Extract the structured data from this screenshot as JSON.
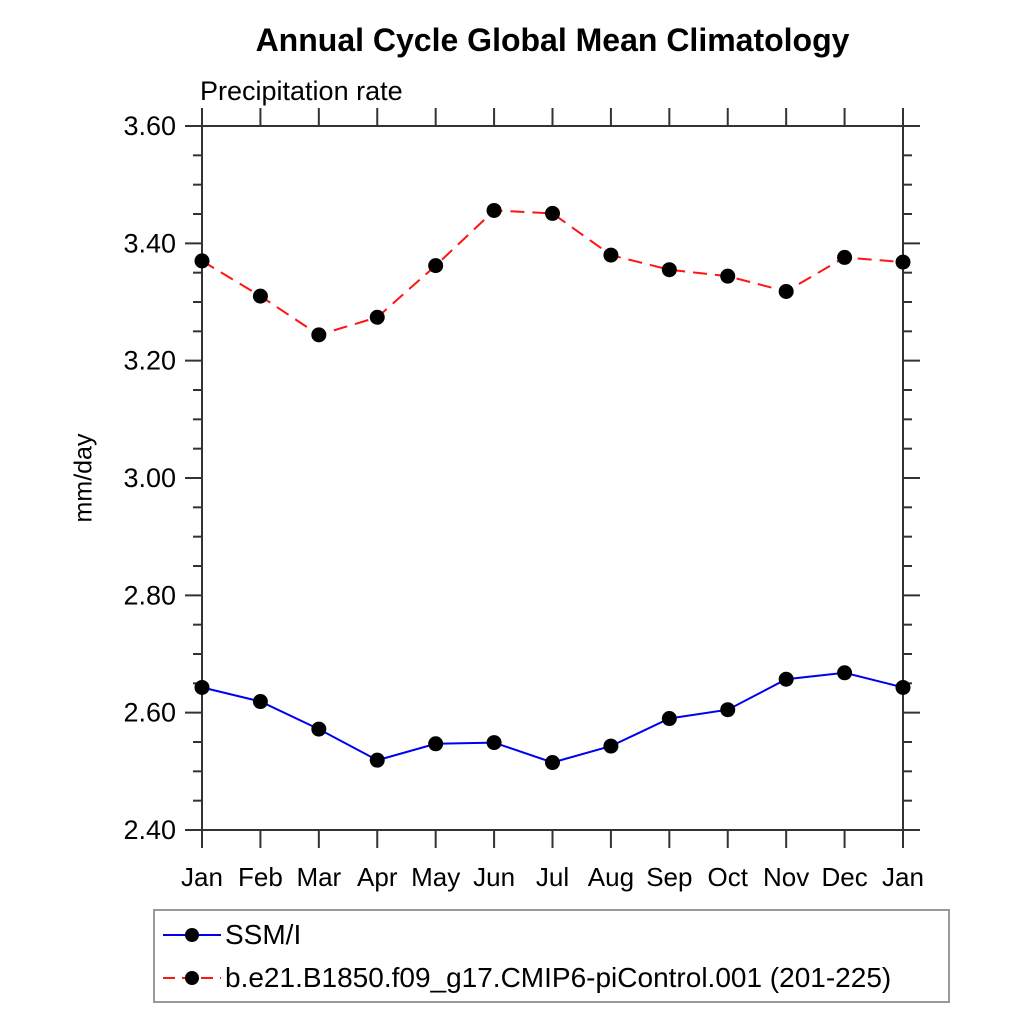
{
  "chart": {
    "title": "Annual Cycle Global Mean Climatology",
    "subtitle": "Precipitation rate",
    "ylabel": "mm/day",
    "legend": [
      {
        "label": "SSM/I"
      },
      {
        "label": "b.e21.B1850.f09_g17.CMIP6-piControl.001 (201-225)"
      }
    ]
  },
  "chart_data": {
    "type": "line",
    "title": "Annual Cycle Global Mean Climatology",
    "subtitle": "Precipitation rate",
    "xlabel": "",
    "ylabel": "mm/day",
    "categories": [
      "Jan",
      "Feb",
      "Mar",
      "Apr",
      "May",
      "Jun",
      "Jul",
      "Aug",
      "Sep",
      "Oct",
      "Nov",
      "Dec",
      "Jan"
    ],
    "series": [
      {
        "name": "SSM/I",
        "color": "#0000f0",
        "style": "solid",
        "marker": "circle",
        "marker_color": "#000000",
        "values": [
          2.643,
          2.619,
          2.572,
          2.519,
          2.547,
          2.549,
          2.515,
          2.543,
          2.59,
          2.605,
          2.657,
          2.668,
          2.643
        ]
      },
      {
        "name": "b.e21.B1850.f09_g17.CMIP6-piControl.001 (201-225)",
        "color": "#ff1414",
        "style": "dashed",
        "marker": "circle",
        "marker_color": "#000000",
        "values": [
          3.37,
          3.31,
          3.244,
          3.274,
          3.362,
          3.456,
          3.451,
          3.38,
          3.355,
          3.344,
          3.318,
          3.376,
          3.368
        ]
      }
    ],
    "ylim": [
      2.4,
      3.6
    ],
    "ytick_major": 0.2,
    "ytick_minor": 0.05,
    "ytick_labels": [
      "2.40",
      "2.60",
      "2.80",
      "3.00",
      "3.20",
      "3.40",
      "3.60"
    ],
    "grid": false,
    "legend_position": "bottom",
    "axis_color": "#333333",
    "text_color": "#000000"
  }
}
